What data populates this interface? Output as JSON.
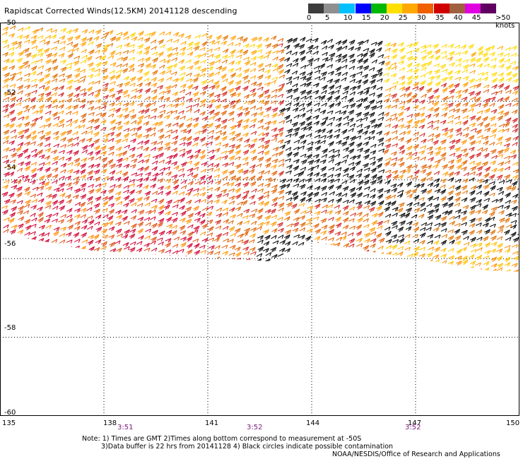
{
  "title": "Rapidscat Corrected Winds(12.5KM) 20141128 descending",
  "colorbar": {
    "colors": [
      "#3c3c3c",
      "#8f8f8f",
      "#00c0ff",
      "#0000ff",
      "#00b800",
      "#ffe000",
      "#ffa800",
      "#f06000",
      "#d00000",
      "#a06040",
      "#e000e0",
      "#600060"
    ],
    "ticks": [
      "0",
      "5",
      "10",
      "15",
      "20",
      "25",
      "30",
      "35",
      "40",
      "45"
    ],
    "units": ">50 knots"
  },
  "latitude_labels": [
    "-50",
    "-52",
    "-54",
    "-56",
    "-58",
    "-60"
  ],
  "longitude_labels": [
    "135",
    "138",
    "141",
    "144",
    "147",
    "150"
  ],
  "pass_times": [
    "3:51",
    "3:52",
    "3:52"
  ],
  "notes": {
    "line1": "Note: 1) Times are GMT 2)Times along bottom correspond to measurement at -50S",
    "line2": "3)Data buffer is 22 hrs from 20141128 4) Black circles indicate possible contamination",
    "credit": "NOAA/NESDIS/Office of Research and Applications"
  },
  "map": {
    "lat_range": [
      -60,
      -50
    ],
    "lon_range": [
      135,
      150
    ],
    "grid": true,
    "swath": "wind barbs colored by speed (knots)"
  }
}
